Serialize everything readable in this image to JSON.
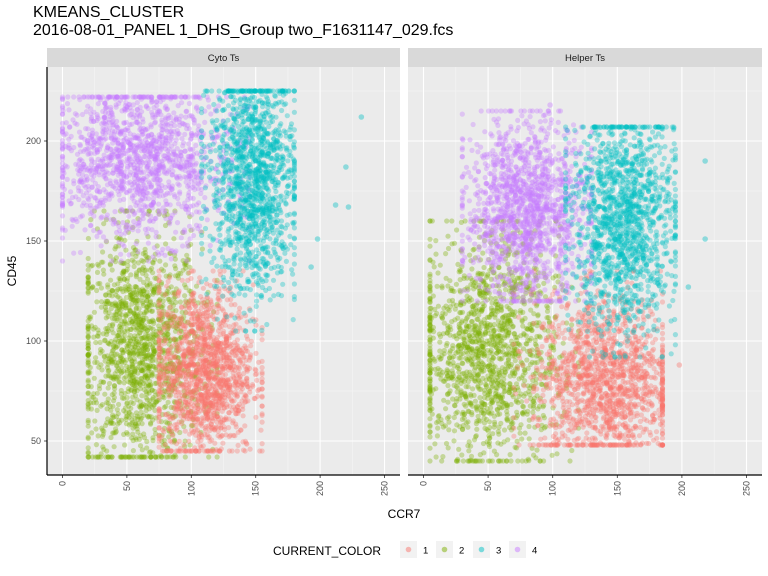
{
  "chart_data": {
    "type": "scatter",
    "title": "KMEANS_CLUSTER",
    "subtitle": "2016-08-01_PANEL 1_DHS_Group two_F1631147_029.fcs",
    "xlabel": "CCR7",
    "ylabel": "CD45",
    "xlim": [
      -12,
      262
    ],
    "ylim": [
      33,
      237
    ],
    "x_ticks": [
      0,
      50,
      100,
      150,
      200,
      250
    ],
    "y_ticks": [
      50,
      100,
      150,
      200
    ],
    "grid": true,
    "legend_position": "bottom",
    "legend_title": "CURRENT_COLOR",
    "panels": [
      {
        "label": "Cyto Ts",
        "series": [
          {
            "name": "1",
            "x_range": [
              75,
              155
            ],
            "y_range": [
              45,
              135
            ],
            "x_mean": 110,
            "y_mean": 85
          },
          {
            "name": "2",
            "x_range": [
              20,
              120
            ],
            "y_range": [
              42,
              165
            ],
            "x_mean": 60,
            "y_mean": 95
          },
          {
            "name": "3",
            "x_range": [
              108,
              180
            ],
            "y_range": [
              105,
              225
            ],
            "x_mean": 148,
            "y_mean": 180
          },
          {
            "name": "4",
            "x_range": [
              0,
              145
            ],
            "y_range": [
              140,
              222
            ],
            "x_mean": 60,
            "y_mean": 190
          }
        ],
        "outliers": [
          {
            "series": "3",
            "x": 232,
            "y": 212
          },
          {
            "series": "3",
            "x": 220,
            "y": 187
          },
          {
            "series": "3",
            "x": 212,
            "y": 168
          },
          {
            "series": "3",
            "x": 222,
            "y": 167
          },
          {
            "series": "3",
            "x": 193,
            "y": 137
          },
          {
            "series": "3",
            "x": 198,
            "y": 151
          }
        ]
      },
      {
        "label": "Helper Ts",
        "series": [
          {
            "name": "1",
            "x_range": [
              70,
              185
            ],
            "y_range": [
              48,
              135
            ],
            "x_mean": 140,
            "y_mean": 80
          },
          {
            "name": "2",
            "x_range": [
              5,
              120
            ],
            "y_range": [
              40,
              160
            ],
            "x_mean": 50,
            "y_mean": 95
          },
          {
            "name": "3",
            "x_range": [
              110,
              195
            ],
            "y_range": [
              92,
              207
            ],
            "x_mean": 155,
            "y_mean": 160
          },
          {
            "name": "4",
            "x_range": [
              30,
              130
            ],
            "y_range": [
              120,
              215
            ],
            "x_mean": 80,
            "y_mean": 165
          }
        ],
        "outliers": [
          {
            "series": "3",
            "x": 218,
            "y": 190
          },
          {
            "series": "3",
            "x": 218,
            "y": 151
          },
          {
            "series": "3",
            "x": 205,
            "y": 127
          },
          {
            "series": "1",
            "x": 198,
            "y": 88
          },
          {
            "series": "4",
            "x": 98,
            "y": 218
          }
        ]
      }
    ]
  },
  "colors": {
    "1": "#F8766D",
    "2": "#7CAE00",
    "3": "#00BFC4",
    "4": "#C77CFF"
  }
}
